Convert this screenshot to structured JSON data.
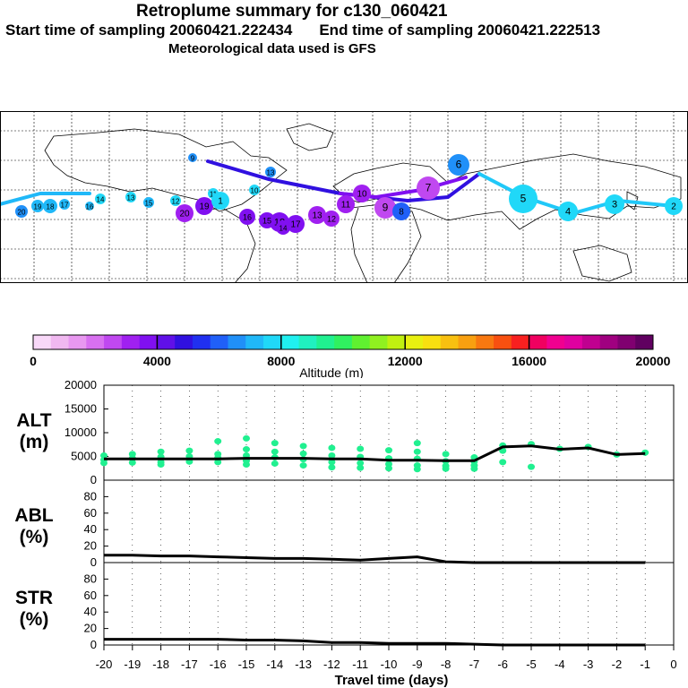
{
  "header": {
    "title": "Retroplume summary for c130_060421",
    "start_label": "Start time of sampling 20060421.222434",
    "end_label": "End time of sampling 20060421.222513",
    "met_label": "Meteorological data used is GFS"
  },
  "colorbar": {
    "title": "Altitude (m)",
    "ticks": [
      "0",
      "4000",
      "8000",
      "12000",
      "16000",
      "20000"
    ],
    "colors": [
      "#f8d8f8",
      "#f0b8f0",
      "#e898f0",
      "#d870f0",
      "#c048f0",
      "#a020f0",
      "#8010f0",
      "#6010e8",
      "#3010e0",
      "#2030f0",
      "#2060f8",
      "#2090f8",
      "#20b8f8",
      "#20d8f8",
      "#20f0f0",
      "#20f0c0",
      "#20f090",
      "#30f060",
      "#60f030",
      "#90f020",
      "#c0f010",
      "#e8f010",
      "#f8e010",
      "#f8c010",
      "#f8a010",
      "#f87810",
      "#f85010",
      "#f82020",
      "#f00060",
      "#f00090",
      "#e000a0",
      "#c00090",
      "#a00080",
      "#800070",
      "#600060"
    ]
  },
  "map": {
    "labels": [
      {
        "text": "20",
        "color": "#2090f8",
        "r": 7
      },
      {
        "text": "19",
        "color": "#20b8f8",
        "r": 7
      },
      {
        "text": "18",
        "color": "#20b8f8",
        "r": 8
      },
      {
        "text": "17",
        "color": "#20b8f8",
        "r": 6
      },
      {
        "text": "16",
        "color": "#20b8f8",
        "r": 5
      },
      {
        "text": "15",
        "color": "#20b8f8",
        "r": 6
      },
      {
        "text": "14",
        "color": "#20d8f8",
        "r": 6
      },
      {
        "text": "13",
        "color": "#20d8f8",
        "r": 6
      },
      {
        "text": "12",
        "color": "#20d8f8",
        "r": 6
      },
      {
        "text": "11",
        "color": "#20d8f8",
        "r": 6
      },
      {
        "text": "10",
        "color": "#20d8f8",
        "r": 6
      },
      {
        "text": "13",
        "color": "#2090f8",
        "r": 6
      },
      {
        "text": "9",
        "color": "#2090f8",
        "r": 5
      },
      {
        "text": "20",
        "color": "#a020f0",
        "r": 10
      },
      {
        "text": "19",
        "color": "#8010f0",
        "r": 10
      },
      {
        "text": "18",
        "color": "#8010f0",
        "r": 11
      },
      {
        "text": "17",
        "color": "#8010f0",
        "r": 10
      },
      {
        "text": "16",
        "color": "#8010f0",
        "r": 9
      },
      {
        "text": "15",
        "color": "#8010f0",
        "r": 9
      },
      {
        "text": "14",
        "color": "#8010f0",
        "r": 8
      },
      {
        "text": "13",
        "color": "#a020f0",
        "r": 10
      },
      {
        "text": "12",
        "color": "#a020f0",
        "r": 9
      },
      {
        "text": "11",
        "color": "#a020f0",
        "r": 10
      },
      {
        "text": "10",
        "color": "#a020f0",
        "r": 10
      },
      {
        "text": "9",
        "color": "#c048f0",
        "r": 12
      },
      {
        "text": "8",
        "color": "#2060f8",
        "r": 10
      },
      {
        "text": "7",
        "color": "#c048f0",
        "r": 13
      },
      {
        "text": "6",
        "color": "#2090f8",
        "r": 12
      },
      {
        "text": "5",
        "color": "#20d8f8",
        "r": 16
      },
      {
        "text": "4",
        "color": "#20d8f8",
        "r": 11
      },
      {
        "text": "3",
        "color": "#20d8f8",
        "r": 11
      },
      {
        "text": "2",
        "color": "#20d8f8",
        "r": 10
      },
      {
        "text": "1",
        "color": "#20d8f8",
        "r": 10
      }
    ]
  },
  "chart_data": [
    {
      "type": "line",
      "title": "ALT (m)",
      "label_line1": "ALT",
      "label_line2": "(m)",
      "x": [
        -20,
        -19,
        -18,
        -17,
        -16,
        -15,
        -14,
        -13,
        -12,
        -11,
        -10,
        -9,
        -8,
        -7,
        -6,
        -5,
        -4,
        -3,
        -2,
        -1
      ],
      "median": [
        4500,
        4500,
        4500,
        4500,
        4500,
        4600,
        4600,
        4600,
        4500,
        4500,
        4200,
        4200,
        4100,
        4100,
        7000,
        7200,
        6500,
        6800,
        5400,
        5600
      ],
      "scatter_y": [
        [
          5200,
          4300,
          3600
        ],
        [
          5500,
          4600,
          3700
        ],
        [
          6000,
          4900,
          3800,
          3300
        ],
        [
          6200,
          5000,
          3900
        ],
        [
          8200,
          5500,
          4700,
          3800
        ],
        [
          8800,
          6500,
          5200,
          4100,
          3300
        ],
        [
          7800,
          6000,
          4800,
          3500
        ],
        [
          7200,
          5600,
          4400,
          3100
        ],
        [
          6800,
          5200,
          3800,
          2700
        ],
        [
          6600,
          4900,
          3600,
          2600
        ],
        [
          6300,
          4600,
          3400,
          2500
        ],
        [
          7800,
          6000,
          4500,
          3100,
          2300
        ],
        [
          5500,
          4000,
          3000,
          2400
        ],
        [
          4800,
          3900,
          3100,
          2400
        ],
        [
          7300,
          6200,
          3800
        ],
        [
          7600,
          2800
        ],
        [
          6600
        ],
        [
          7000
        ],
        [
          5400
        ],
        [
          5800
        ]
      ],
      "ylim": [
        0,
        20000
      ],
      "yticks": [
        "0",
        "5000",
        "10000",
        "15000",
        "20000"
      ]
    },
    {
      "type": "line",
      "title": "ABL (%)",
      "label_line1": "ABL",
      "label_line2": "(%)",
      "x": [
        -20,
        -19,
        -18,
        -17,
        -16,
        -15,
        -14,
        -13,
        -12,
        -11,
        -10,
        -9,
        -8,
        -7,
        -6,
        -5,
        -4,
        -3,
        -2,
        -1
      ],
      "values": [
        9,
        9,
        8,
        8,
        7,
        6,
        5,
        5,
        4,
        3,
        5,
        7,
        1,
        0,
        0,
        0,
        0,
        0,
        0,
        0
      ],
      "ylim": [
        0,
        100
      ],
      "yticks": [
        "0",
        "20",
        "40",
        "60",
        "80"
      ]
    },
    {
      "type": "line",
      "title": "STR (%)",
      "label_line1": "STR",
      "label_line2": "(%)",
      "x": [
        -20,
        -19,
        -18,
        -17,
        -16,
        -15,
        -14,
        -13,
        -12,
        -11,
        -10,
        -9,
        -8,
        -7,
        -6,
        -5,
        -4,
        -3,
        -2,
        -1
      ],
      "values": [
        7,
        7,
        7,
        7,
        7,
        6,
        6,
        5,
        3,
        3,
        2,
        2,
        2,
        1,
        0,
        0,
        0,
        0,
        0,
        0
      ],
      "ylim": [
        0,
        100
      ],
      "yticks": [
        "0",
        "20",
        "40",
        "60",
        "80"
      ]
    }
  ],
  "xaxis": {
    "label": "Travel time (days)",
    "ticks": [
      "-20",
      "-19",
      "-18",
      "-17",
      "-16",
      "-15",
      "-14",
      "-13",
      "-12",
      "-11",
      "-10",
      "-9",
      "-8",
      "-7",
      "-6",
      "-5",
      "-4",
      "-3",
      "-2",
      "-1",
      "0"
    ]
  }
}
